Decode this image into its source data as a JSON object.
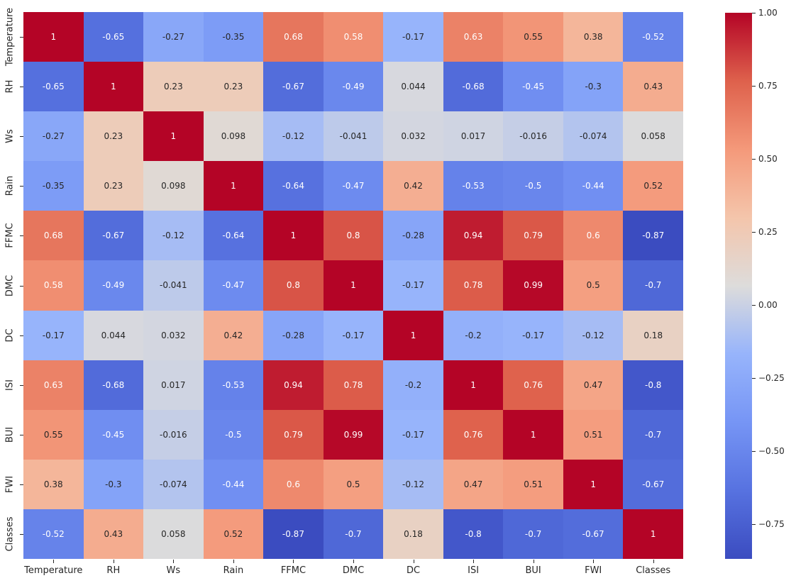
{
  "chart_data": {
    "type": "heatmap",
    "title": "",
    "xlabel": "",
    "ylabel": "",
    "categories": [
      "Temperature",
      "RH",
      "Ws",
      "Rain",
      "FFMC",
      "DMC",
      "DC",
      "ISI",
      "BUI",
      "FWI",
      "Classes"
    ],
    "matrix": [
      [
        "1",
        "-0.65",
        "-0.27",
        "-0.35",
        "0.68",
        "0.58",
        "-0.17",
        "0.63",
        "0.55",
        "0.38",
        "-0.52"
      ],
      [
        "-0.65",
        "1",
        "0.23",
        "0.23",
        "-0.67",
        "-0.49",
        "0.044",
        "-0.68",
        "-0.45",
        "-0.3",
        "0.43"
      ],
      [
        "-0.27",
        "0.23",
        "1",
        "0.098",
        "-0.12",
        "-0.041",
        "0.032",
        "0.017",
        "-0.016",
        "-0.074",
        "0.058"
      ],
      [
        "-0.35",
        "0.23",
        "0.098",
        "1",
        "-0.64",
        "-0.47",
        "0.42",
        "-0.53",
        "-0.5",
        "-0.44",
        "0.52"
      ],
      [
        "0.68",
        "-0.67",
        "-0.12",
        "-0.64",
        "1",
        "0.8",
        "-0.28",
        "0.94",
        "0.79",
        "0.6",
        "-0.87"
      ],
      [
        "0.58",
        "-0.49",
        "-0.041",
        "-0.47",
        "0.8",
        "1",
        "-0.17",
        "0.78",
        "0.99",
        "0.5",
        "-0.7"
      ],
      [
        "-0.17",
        "0.044",
        "0.032",
        "0.42",
        "-0.28",
        "-0.17",
        "1",
        "-0.2",
        "-0.17",
        "-0.12",
        "0.18"
      ],
      [
        "0.63",
        "-0.68",
        "0.017",
        "-0.53",
        "0.94",
        "0.78",
        "-0.2",
        "1",
        "0.76",
        "0.47",
        "-0.8"
      ],
      [
        "0.55",
        "-0.45",
        "-0.016",
        "-0.5",
        "0.79",
        "0.99",
        "-0.17",
        "0.76",
        "1",
        "0.51",
        "-0.7"
      ],
      [
        "0.38",
        "-0.3",
        "-0.074",
        "-0.44",
        "0.6",
        "0.5",
        "-0.12",
        "0.47",
        "0.51",
        "1",
        "-0.67"
      ],
      [
        "-0.52",
        "0.43",
        "0.058",
        "0.52",
        "-0.87",
        "-0.7",
        "0.18",
        "-0.8",
        "-0.7",
        "-0.67",
        "1"
      ]
    ],
    "value_range": [
      -0.87,
      1.0
    ],
    "grid": false,
    "colormap": {
      "name": "coolwarm",
      "anchors": [
        {
          "t": 0.0,
          "color": "#3B4CC0"
        },
        {
          "t": 0.125,
          "color": "#5772E0"
        },
        {
          "t": 0.25,
          "color": "#7695F5"
        },
        {
          "t": 0.375,
          "color": "#97B4FB"
        },
        {
          "t": 0.5,
          "color": "#DDDCDB"
        },
        {
          "t": 0.625,
          "color": "#F4C5AB"
        },
        {
          "t": 0.75,
          "color": "#F4997A"
        },
        {
          "t": 0.875,
          "color": "#DE614C"
        },
        {
          "t": 1.0,
          "color": "#B40426"
        }
      ]
    },
    "colorbar": {
      "position": "right",
      "ticks": [
        {
          "label": "1.00",
          "value": 1.0
        },
        {
          "label": "0.75",
          "value": 0.75
        },
        {
          "label": "0.50",
          "value": 0.5
        },
        {
          "label": "0.25",
          "value": 0.25
        },
        {
          "label": "0.00",
          "value": 0.0
        },
        {
          "label": "−0.25",
          "value": -0.25
        },
        {
          "label": "−0.50",
          "value": -0.5
        },
        {
          "label": "−0.75",
          "value": -0.75
        }
      ]
    },
    "annotation_colors": {
      "light_text": "#ffffff",
      "dark_text": "#262626"
    }
  }
}
